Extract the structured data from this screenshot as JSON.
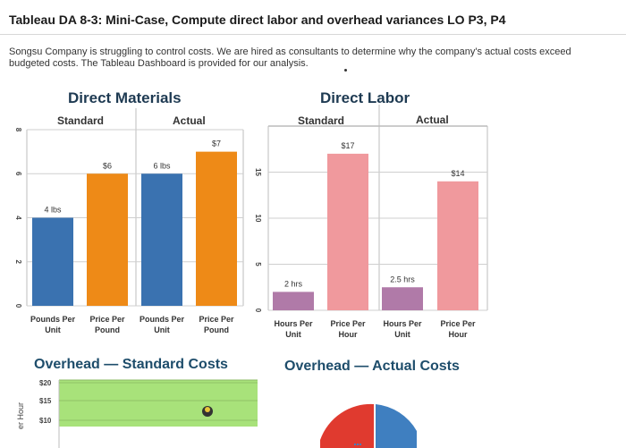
{
  "header": {
    "title": "Tableau DA 8-3: Mini-Case, Compute direct labor and overhead variances LO P3, P4",
    "description": "Songsu Company is struggling to control costs. We are hired as consultants to determine why the company's actual costs exceed budgeted costs. The Tableau Dashboard is provided for our analysis."
  },
  "chart_data": [
    {
      "type": "bar",
      "title": "Direct Materials",
      "groups": [
        "Standard",
        "Actual"
      ],
      "categories": [
        "Pounds Per Unit",
        "Price Per Pound",
        "Pounds Per Unit",
        "Price Per Pound"
      ],
      "values": [
        4,
        6,
        6,
        7
      ],
      "data_labels": [
        "4 lbs",
        "$6",
        "6 lbs",
        "$7"
      ],
      "colors": [
        "#3a72b0",
        "#ee8a17",
        "#3a72b0",
        "#ee8a17"
      ],
      "yticks": [
        "0",
        "2",
        "4",
        "6",
        "8"
      ],
      "ylim": [
        0,
        8
      ],
      "grid": true
    },
    {
      "type": "bar",
      "title": "Direct Labor",
      "groups": [
        "Standard",
        "Actual"
      ],
      "categories": [
        "Hours Per Unit",
        "Price Per Hour",
        "Hours Per Unit",
        "Price Per Hour"
      ],
      "values": [
        2,
        17,
        2.5,
        14
      ],
      "data_labels": [
        "2 hrs",
        "$17",
        "2.5 hrs",
        "$14"
      ],
      "colors": [
        "#b07aa8",
        "#f0999d",
        "#b07aa8",
        "#f0999d"
      ],
      "yticks": [
        "0",
        "5",
        "10",
        "15"
      ],
      "ylim": [
        0,
        20
      ],
      "grid": true
    },
    {
      "type": "bar",
      "title": "Overhead — Standard Costs",
      "ylabel": "er Hour",
      "yticks": [
        "$10",
        "$15",
        "$20"
      ],
      "fill_color": "#a8e27a"
    },
    {
      "type": "pie",
      "title": "Overhead — Actual Costs",
      "colors": [
        "#e03a2f",
        "#3f7fc0"
      ]
    }
  ]
}
